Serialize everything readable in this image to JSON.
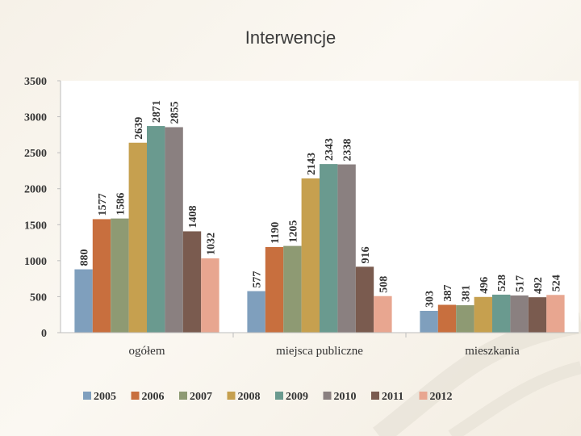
{
  "slide": {
    "title": "Interwencje"
  },
  "chart_data": {
    "type": "bar",
    "categories": [
      "ogółem",
      "miejsca publiczne",
      "mieszkania"
    ],
    "series": [
      {
        "name": "2005",
        "values": [
          880,
          577,
          303
        ]
      },
      {
        "name": "2006",
        "values": [
          1577,
          1190,
          387
        ]
      },
      {
        "name": "2007",
        "values": [
          1586,
          1205,
          381
        ]
      },
      {
        "name": "2008",
        "values": [
          2639,
          2143,
          496
        ]
      },
      {
        "name": "2009",
        "values": [
          2871,
          2343,
          528
        ]
      },
      {
        "name": "2010",
        "values": [
          2855,
          2338,
          517
        ]
      },
      {
        "name": "2011",
        "values": [
          1408,
          916,
          492
        ]
      },
      {
        "name": "2012",
        "values": [
          1032,
          508,
          524
        ]
      }
    ],
    "colors": [
      "#7f9fbd",
      "#c86f3e",
      "#8e9a73",
      "#c6a04f",
      "#6a9a8f",
      "#8a8080",
      "#7a5b4f",
      "#e8a690"
    ],
    "ylim": [
      0,
      3500
    ],
    "yticks": [
      0,
      500,
      1000,
      1500,
      2000,
      2500,
      3000,
      3500
    ],
    "legend_position": "bottom",
    "grid": false,
    "data_labels": true
  }
}
